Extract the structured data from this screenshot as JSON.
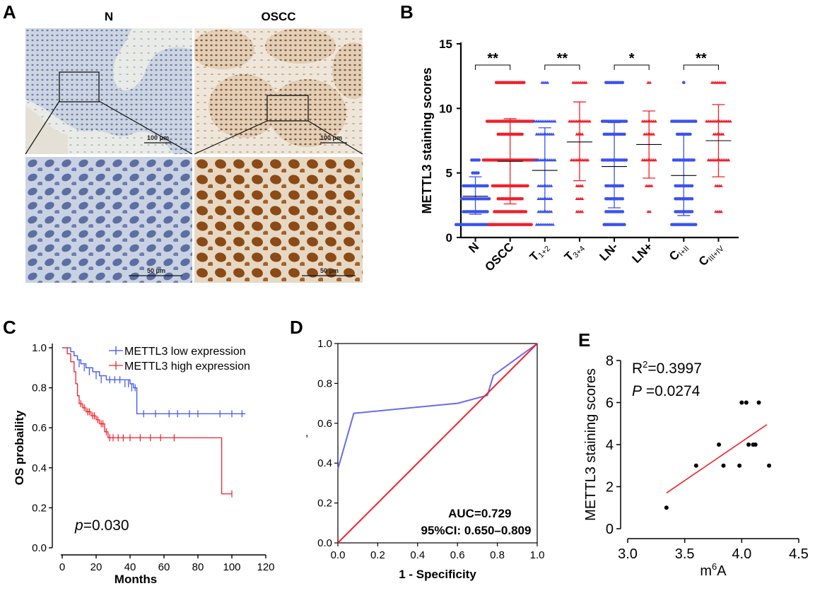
{
  "panels": {
    "A": {
      "label": "A",
      "normal_title": "N",
      "oscc_title": "OSCC",
      "scale_large": "100 μm",
      "scale_small": "50 μm"
    },
    "B": {
      "label": "B"
    },
    "C": {
      "label": "C"
    },
    "D": {
      "label": "D"
    },
    "E": {
      "label": "E"
    }
  },
  "colors": {
    "blue": "#3b52f0",
    "red": "#f0202a",
    "lavender": "#6a6aef"
  },
  "chart_data": [
    {
      "id": "B",
      "type": "scatter",
      "ylabel": "METTL3 staining scores",
      "ylim": [
        0,
        15
      ],
      "yticks": [
        0,
        5,
        10,
        15
      ],
      "categories": [
        {
          "label": "N",
          "sub": ""
        },
        {
          "label": "OSCC",
          "sub": ""
        },
        {
          "label": "T",
          "sub": "1+2"
        },
        {
          "label": "T",
          "sub": "3+4"
        },
        {
          "label": "LN-",
          "sub": ""
        },
        {
          "label": "LN+",
          "sub": ""
        },
        {
          "label": "C",
          "sub": "I+II"
        },
        {
          "label": "C",
          "sub": "III+IV"
        }
      ],
      "groups": [
        {
          "color": "blue",
          "mean": 3.2,
          "sd_low": 1.8,
          "sd_high": 4.7,
          "points": {
            "1": 22,
            "2": 14,
            "3": 16,
            "4": 14,
            "5": 4,
            "6": 5
          }
        },
        {
          "color": "red",
          "mean": 5.9,
          "sd_low": 2.6,
          "sd_high": 9.2,
          "points": {
            "1": 24,
            "2": 18,
            "3": 14,
            "4": 20,
            "6": 30,
            "8": 14,
            "9": 26,
            "12": 16
          }
        },
        {
          "color": "blue",
          "mean": 5.2,
          "sd_low": 2.0,
          "sd_high": 8.5,
          "points": {
            "1": 10,
            "2": 8,
            "3": 8,
            "4": 8,
            "6": 12,
            "8": 10,
            "9": 12,
            "12": 4
          }
        },
        {
          "color": "red",
          "mean": 7.4,
          "sd_low": 4.4,
          "sd_high": 10.5,
          "points": {
            "2": 4,
            "3": 4,
            "4": 4,
            "6": 10,
            "8": 4,
            "9": 12,
            "12": 8
          }
        },
        {
          "color": "blue",
          "mean": 5.5,
          "sd_low": 2.3,
          "sd_high": 8.9,
          "points": {
            "1": 12,
            "2": 10,
            "3": 10,
            "4": 10,
            "6": 14,
            "8": 12,
            "9": 14,
            "12": 10
          }
        },
        {
          "color": "red",
          "mean": 7.2,
          "sd_low": 4.6,
          "sd_high": 9.8,
          "points": {
            "2": 2,
            "4": 4,
            "6": 8,
            "8": 6,
            "9": 8,
            "12": 2
          }
        },
        {
          "color": "blue",
          "mean": 4.8,
          "sd_low": 1.7,
          "sd_high": 8.0,
          "points": {
            "1": 14,
            "2": 10,
            "3": 10,
            "4": 10,
            "6": 12,
            "8": 8,
            "9": 14,
            "12": 1
          }
        },
        {
          "color": "red",
          "mean": 7.5,
          "sd_low": 4.7,
          "sd_high": 10.3,
          "points": {
            "2": 4,
            "4": 4,
            "6": 12,
            "8": 6,
            "9": 14,
            "12": 8
          }
        }
      ],
      "significance": [
        {
          "from": 0,
          "to": 1,
          "label": "**"
        },
        {
          "from": 2,
          "to": 3,
          "label": "**"
        },
        {
          "from": 4,
          "to": 5,
          "label": "*"
        },
        {
          "from": 6,
          "to": 7,
          "label": "**"
        }
      ]
    },
    {
      "id": "C",
      "type": "line",
      "xlabel": "Months",
      "ylabel": "OS probaility",
      "xlim": [
        0,
        120
      ],
      "ylim": [
        0,
        1
      ],
      "xticks": [
        0,
        20,
        40,
        60,
        80,
        100,
        120
      ],
      "yticks": [
        0.0,
        0.2,
        0.4,
        0.6,
        0.8,
        1.0
      ],
      "annotation": "p=0.030",
      "annotation_italic": "p",
      "annotation_rest": "=0.030",
      "legend_position": "top-right",
      "series": [
        {
          "name": "METTL3 low  expression",
          "color": "blue",
          "steps": [
            [
              0,
              1.0
            ],
            [
              5,
              0.98
            ],
            [
              7,
              0.96
            ],
            [
              9,
              0.94
            ],
            [
              11,
              0.92
            ],
            [
              14,
              0.9
            ],
            [
              18,
              0.88
            ],
            [
              22,
              0.86
            ],
            [
              26,
              0.84
            ],
            [
              40,
              0.82
            ],
            [
              42,
              0.8
            ],
            [
              44,
              0.67
            ],
            [
              108,
              0.67
            ]
          ],
          "censors": [
            [
              10,
              0.92
            ],
            [
              13,
              0.9
            ],
            [
              16,
              0.88
            ],
            [
              20,
              0.86
            ],
            [
              23,
              0.84
            ],
            [
              28,
              0.84
            ],
            [
              31,
              0.84
            ],
            [
              34,
              0.84
            ],
            [
              37,
              0.82
            ],
            [
              39,
              0.82
            ],
            [
              41,
              0.8
            ],
            [
              43,
              0.8
            ],
            [
              48,
              0.67
            ],
            [
              55,
              0.67
            ],
            [
              63,
              0.67
            ],
            [
              68,
              0.67
            ],
            [
              75,
              0.67
            ],
            [
              80,
              0.67
            ],
            [
              93,
              0.67
            ],
            [
              100,
              0.67
            ],
            [
              106,
              0.67
            ]
          ]
        },
        {
          "name": "METTL3 high expression",
          "color": "red",
          "steps": [
            [
              0,
              1.0
            ],
            [
              3,
              0.97
            ],
            [
              5,
              0.93
            ],
            [
              7,
              0.88
            ],
            [
              8,
              0.82
            ],
            [
              9,
              0.76
            ],
            [
              10,
              0.72
            ],
            [
              12,
              0.7
            ],
            [
              14,
              0.68
            ],
            [
              17,
              0.66
            ],
            [
              20,
              0.64
            ],
            [
              22,
              0.62
            ],
            [
              25,
              0.58
            ],
            [
              27,
              0.55
            ],
            [
              93,
              0.55
            ],
            [
              94,
              0.27
            ],
            [
              100,
              0.27
            ]
          ],
          "censors": [
            [
              11,
              0.72
            ],
            [
              13,
              0.7
            ],
            [
              15,
              0.68
            ],
            [
              16,
              0.68
            ],
            [
              18,
              0.66
            ],
            [
              19,
              0.66
            ],
            [
              21,
              0.64
            ],
            [
              23,
              0.62
            ],
            [
              24,
              0.62
            ],
            [
              26,
              0.58
            ],
            [
              28,
              0.55
            ],
            [
              30,
              0.55
            ],
            [
              33,
              0.55
            ],
            [
              36,
              0.55
            ],
            [
              40,
              0.55
            ],
            [
              46,
              0.55
            ],
            [
              52,
              0.55
            ],
            [
              58,
              0.55
            ],
            [
              66,
              0.55
            ],
            [
              100,
              0.27
            ]
          ]
        }
      ]
    },
    {
      "id": "D",
      "type": "line",
      "xlabel": "1 - Specificity",
      "ylabel": ",",
      "xlim": [
        0,
        1
      ],
      "ylim": [
        0,
        1
      ],
      "xticks": [
        0.0,
        0.2,
        0.4,
        0.6,
        0.8,
        1.0
      ],
      "yticks": [
        0.0,
        0.2,
        0.4,
        0.6,
        0.8,
        1.0
      ],
      "annotation_line1": "AUC=0.729",
      "annotation_line2": "95%CI: 0.650–0.809",
      "series": [
        {
          "color": "lavender",
          "points": [
            [
              0,
              0.37
            ],
            [
              0.08,
              0.65
            ],
            [
              0.6,
              0.7
            ],
            [
              0.75,
              0.74
            ],
            [
              0.78,
              0.84
            ],
            [
              1.0,
              1.0
            ]
          ]
        },
        {
          "color": "red",
          "points": [
            [
              0,
              0
            ],
            [
              1,
              1
            ]
          ]
        }
      ]
    },
    {
      "id": "E",
      "type": "scatter",
      "xlabel": "m",
      "xlabel_sup": "6",
      "xlabel_rest": "A",
      "ylabel": "METTL3 staining scores",
      "xlim": [
        3.0,
        4.5
      ],
      "ylim": [
        0,
        8
      ],
      "xticks": [
        "3.0",
        "3.5",
        "4.0",
        "4.5"
      ],
      "yticks": [
        0,
        2,
        4,
        6,
        8
      ],
      "r2_label": "R",
      "r2_sup": "2",
      "r2_value": "=0.3997",
      "p_italic": "P",
      "p_value": " =0.0274",
      "points": [
        [
          3.34,
          1
        ],
        [
          3.6,
          3
        ],
        [
          3.8,
          4
        ],
        [
          3.84,
          3
        ],
        [
          3.98,
          3
        ],
        [
          4.0,
          6
        ],
        [
          4.04,
          6
        ],
        [
          4.06,
          4
        ],
        [
          4.1,
          4
        ],
        [
          4.12,
          4
        ],
        [
          4.15,
          6
        ],
        [
          4.24,
          3
        ]
      ],
      "fit": [
        [
          3.34,
          1.7
        ],
        [
          4.22,
          4.95
        ]
      ],
      "fit_color": "red"
    }
  ]
}
